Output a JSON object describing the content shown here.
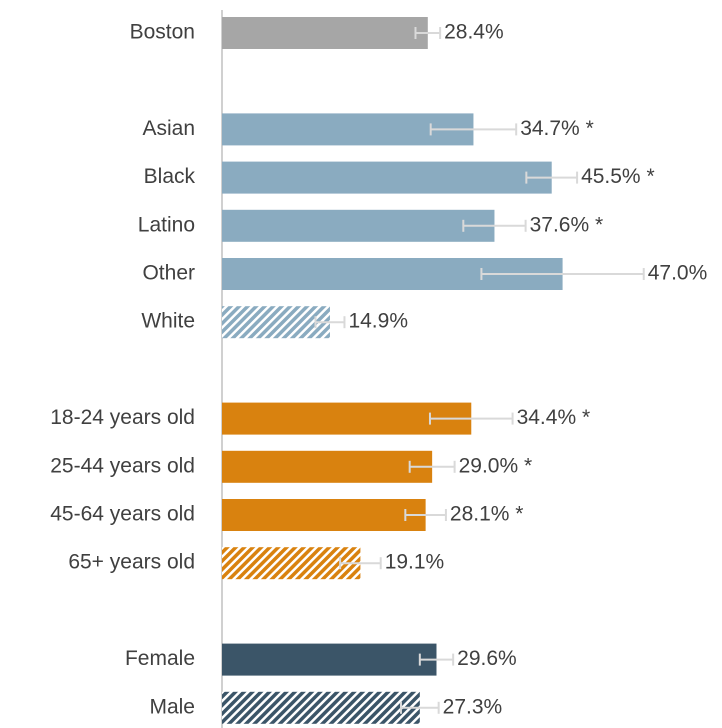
{
  "chart_data": {
    "type": "bar",
    "orientation": "horizontal",
    "categories": [
      "Boston",
      null,
      "Asian",
      "Black",
      "Latino",
      "Other",
      "White",
      null,
      "18-24 years old",
      "25-44 years old",
      "45-64 years old",
      "65+ years old",
      null,
      "Female",
      "Male"
    ],
    "values": [
      28.4,
      null,
      34.7,
      45.5,
      37.6,
      47.0,
      14.9,
      null,
      34.4,
      29.0,
      28.1,
      19.1,
      null,
      29.6,
      27.3
    ],
    "errors": [
      1.7,
      null,
      5.9,
      3.5,
      4.3,
      11.2,
      2.0,
      null,
      5.7,
      3.1,
      2.8,
      2.8,
      null,
      2.3,
      2.6
    ],
    "value_labels": [
      "28.4%",
      null,
      "34.7% *",
      "45.5% *",
      "37.6% *",
      "47.0%",
      "14.9%",
      null,
      "34.4% *",
      "29.0% *",
      "28.1% *",
      "19.1%",
      null,
      "29.6%",
      "27.3%"
    ],
    "colors": [
      "#a6a6a6",
      null,
      "#8aabc0",
      "#8aabc0",
      "#8aabc0",
      "#8aabc0",
      "#8aabc0",
      null,
      "#d9820f",
      "#d9820f",
      "#d9820f",
      "#d9820f",
      null,
      "#3b5568",
      "#3b5568"
    ],
    "hatched": [
      false,
      null,
      false,
      false,
      false,
      false,
      true,
      null,
      false,
      false,
      false,
      true,
      null,
      false,
      true
    ],
    "xlim": [
      0,
      69
    ]
  }
}
